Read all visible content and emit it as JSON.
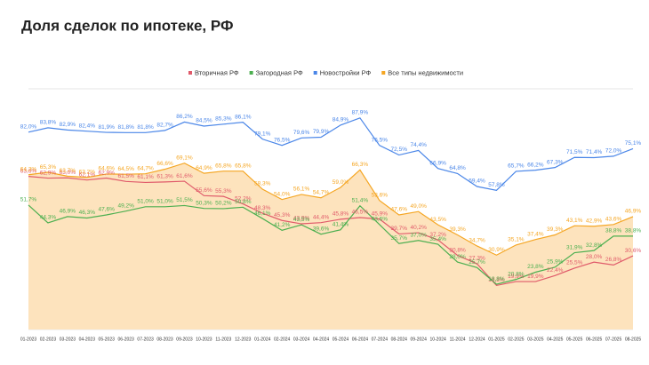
{
  "chart_data": {
    "type": "line",
    "title": "Доля сделок по ипотеке, РФ",
    "categories": [
      "01-2023",
      "02-2023",
      "03-2023",
      "04-2023",
      "05-2023",
      "06-2023",
      "07-2023",
      "08-2023",
      "09-2023",
      "10-2023",
      "11-2023",
      "12-2023",
      "01-2024",
      "02-2024",
      "03-2024",
      "04-2024",
      "05-2024",
      "06-2024",
      "07-2024",
      "08-2024",
      "09-2024",
      "10-2024",
      "11-2024",
      "12-2024",
      "01-2025",
      "02-2025",
      "03-2025",
      "04-2025",
      "05-2025",
      "06-2025",
      "07-2025",
      "08-2025"
    ],
    "ylim": [
      0,
      100
    ],
    "series": [
      {
        "name": "Вторичная РФ",
        "color": "#e05a6a",
        "values": [
          63.6,
          62.9,
          63.0,
          62.1,
          62.9,
          61.5,
          61.1,
          61.3,
          61.6,
          55.6,
          55.3,
          52.2,
          48.3,
          45.3,
          43.9,
          44.4,
          45.8,
          46.5,
          45.9,
          39.7,
          40.2,
          37.2,
          30.8,
          27.3,
          18.3,
          19.9,
          19.9,
          22.4,
          25.5,
          28.0,
          26.8,
          30.6
        ],
        "value_labels": [
          "63,6%",
          "62,9%",
          "63,0%",
          "62,1%",
          "62,9%",
          "61,5%",
          "61,1%",
          "61,3%",
          "61,6%",
          "55,6%",
          "55,3%",
          "52,2%",
          "48,3%",
          "45,3%",
          "43,9%",
          "44,4%",
          "45,8%",
          "46,5%",
          "45,9%",
          "39,7%",
          "40,2%",
          "37,2%",
          "30,8%",
          "27,3%",
          "18,3%",
          "19,9%",
          "19,9%",
          "22,4%",
          "25,5%",
          "28,0%",
          "26,8%",
          "30,6%"
        ]
      },
      {
        "name": "Загородная РФ",
        "color": "#4caf50",
        "values": [
          51.7,
          44.3,
          46.9,
          46.3,
          47.6,
          49.2,
          51.0,
          51.0,
          51.5,
          50.3,
          50.2,
          50.8,
          46.1,
          41.2,
          43.5,
          39.6,
          41.4,
          51.4,
          43.6,
          35.7,
          37.0,
          35.4,
          28.0,
          25.7,
          18.8,
          20.8,
          23.8,
          25.9,
          31.9,
          32.8,
          38.8,
          38.8
        ],
        "value_labels": [
          "51,7%",
          "44,3%",
          "46,9%",
          "46,3%",
          "47,6%",
          "49,2%",
          "51,0%",
          "51,0%",
          "51,5%",
          "50,3%",
          "50,2%",
          "50,8%",
          "46,1%",
          "41,2%",
          "43,5%",
          "39,6%",
          "41,4%",
          "51,4%",
          "43,6%",
          "35,7%",
          "37,0%",
          "35,4%",
          "28,0%",
          "25,7%",
          "18,8%",
          "20,8%",
          "23,8%",
          "25,9%",
          "31,9%",
          "32,8%",
          "38,8%",
          "38,8%"
        ]
      },
      {
        "name": "Новостройки РФ",
        "color": "#4a86e8",
        "values": [
          82.0,
          83.8,
          82.9,
          82.4,
          81.9,
          81.8,
          81.8,
          82.7,
          86.2,
          84.5,
          85.3,
          86.1,
          79.1,
          76.5,
          79.6,
          79.9,
          84.9,
          87.9,
          76.5,
          72.5,
          74.4,
          66.9,
          64.8,
          59.4,
          57.8,
          65.7,
          66.2,
          67.3,
          71.5,
          71.4,
          72.0,
          75.1
        ],
        "value_labels": [
          "82,0%",
          "83,8%",
          "82,9%",
          "82,4%",
          "81,9%",
          "81,8%",
          "81,8%",
          "82,7%",
          "86,2%",
          "84,5%",
          "85,3%",
          "86,1%",
          "79,1%",
          "76,5%",
          "79,6%",
          "79,9%",
          "84,9%",
          "87,9%",
          "76,5%",
          "72,5%",
          "74,4%",
          "66,9%",
          "64,8%",
          "59,4%",
          "57,8%",
          "65,7%",
          "66,2%",
          "67,3%",
          "71,5%",
          "71,4%",
          "72,0%",
          "75,1%"
        ]
      },
      {
        "name": "Все типы недвижимости",
        "color": "#f5a623",
        "fill": "#fde3bd",
        "values": [
          64.3,
          65.3,
          63.7,
          63.2,
          64.6,
          64.5,
          64.7,
          66.6,
          69.1,
          64.9,
          65.8,
          65.8,
          58.3,
          54.0,
          56.1,
          54.7,
          59.0,
          66.3,
          53.6,
          47.6,
          49.0,
          43.5,
          39.3,
          34.7,
          30.9,
          35.1,
          37.4,
          39.3,
          43.1,
          42.9,
          43.6,
          46.9
        ],
        "value_labels": [
          "64,3%",
          "65,3%",
          "63,7%",
          "63,2%",
          "64,6%",
          "64,5%",
          "64,7%",
          "66,6%",
          "69,1%",
          "64,9%",
          "65,8%",
          "65,8%",
          "58,3%",
          "54,0%",
          "56,1%",
          "54,7%",
          "59,0%",
          "66,3%",
          "53,6%",
          "47,6%",
          "49,0%",
          "43,5%",
          "39,3%",
          "34,7%",
          "30,9%",
          "35,1%",
          "37,4%",
          "39,3%",
          "43,1%",
          "42,9%",
          "43,6%",
          "46,9%"
        ]
      }
    ]
  }
}
